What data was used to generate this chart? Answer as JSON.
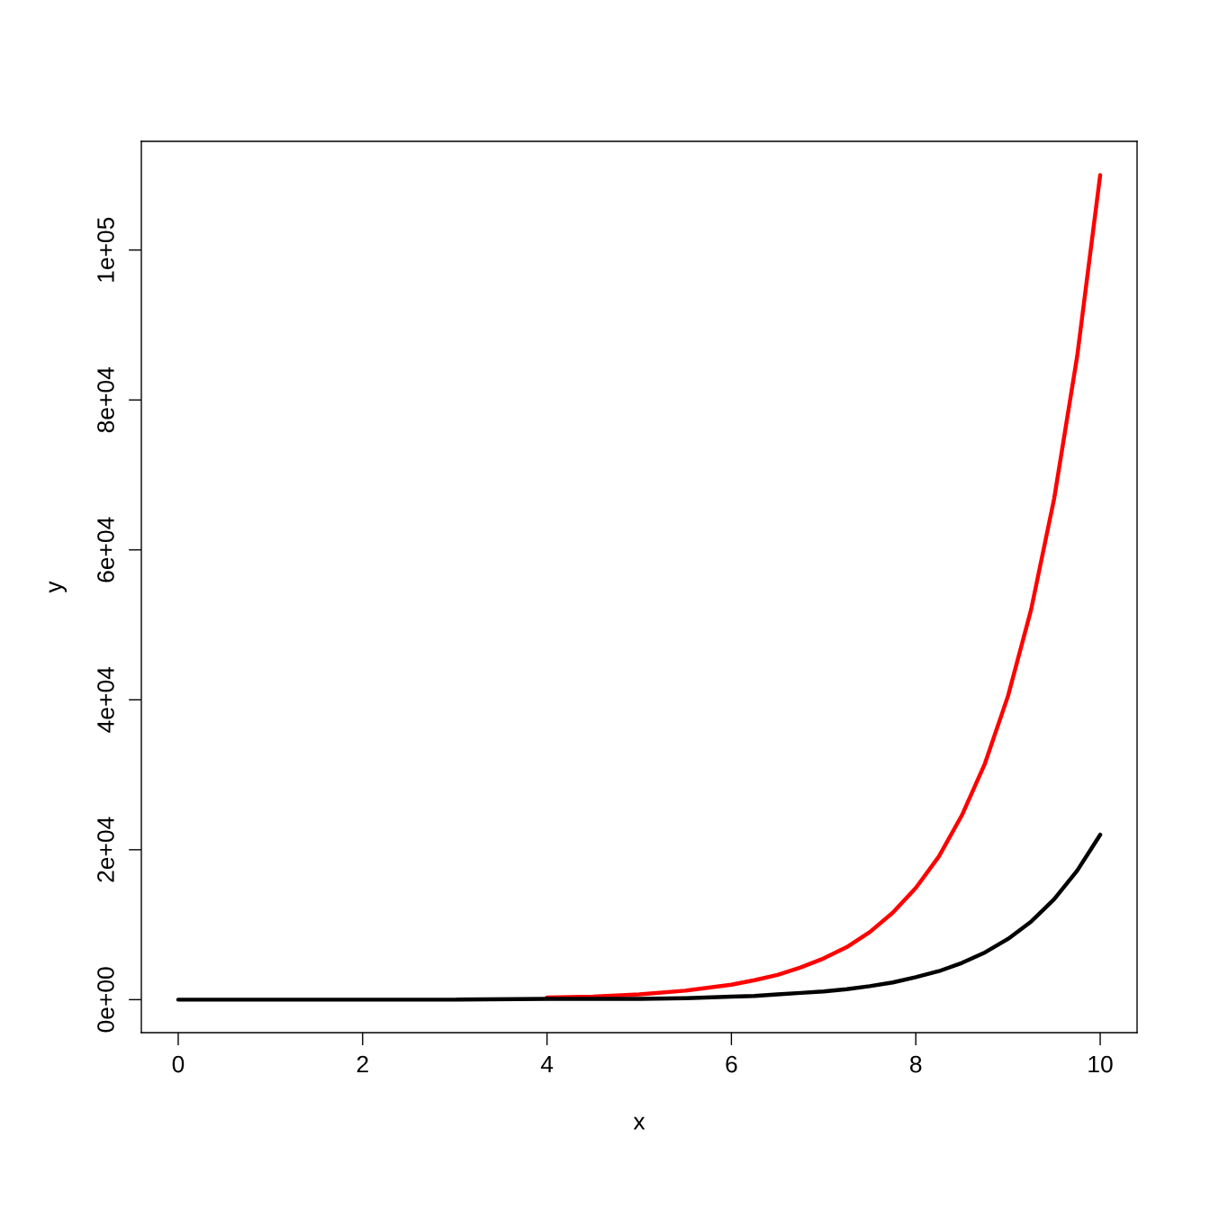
{
  "chart_data": {
    "type": "line",
    "xlabel": "x",
    "ylabel": "y",
    "x": [
      0,
      1,
      2,
      3,
      4,
      4.5,
      5,
      5.5,
      6,
      6.25,
      6.5,
      6.75,
      7,
      7.25,
      7.5,
      7.75,
      8,
      8.25,
      8.5,
      8.75,
      9,
      9.25,
      9.5,
      9.75,
      10
    ],
    "series": [
      {
        "color": "#ff0000",
        "values": [
          null,
          null,
          null,
          null,
          300,
          400,
          700,
          1200,
          2000,
          2600,
          3300,
          4300,
          5500,
          7000,
          9000,
          11600,
          14900,
          19100,
          24600,
          31500,
          40500,
          52000,
          66800,
          85800,
          110000
        ]
      },
      {
        "color": "#000000",
        "values": [
          0,
          0,
          0,
          0,
          100,
          100,
          100,
          200,
          400,
          500,
          700,
          900,
          1100,
          1400,
          1800,
          2300,
          3000,
          3800,
          4900,
          6300,
          8100,
          10400,
          13400,
          17200,
          22000
        ]
      }
    ],
    "xlim": [
      -0.4,
      10.4
    ],
    "ylim": [
      -4400,
      114500
    ],
    "xticks": [
      0,
      2,
      4,
      6,
      8,
      10
    ],
    "yticks": [
      {
        "value": 0,
        "label": "0e+00"
      },
      {
        "value": 20000,
        "label": "2e+04"
      },
      {
        "value": 40000,
        "label": "4e+04"
      },
      {
        "value": 60000,
        "label": "6e+04"
      },
      {
        "value": 80000,
        "label": "8e+04"
      },
      {
        "value": 100000,
        "label": "1e+05"
      }
    ],
    "grid": false,
    "legend": false,
    "marker": "none",
    "line_style": "solid"
  }
}
